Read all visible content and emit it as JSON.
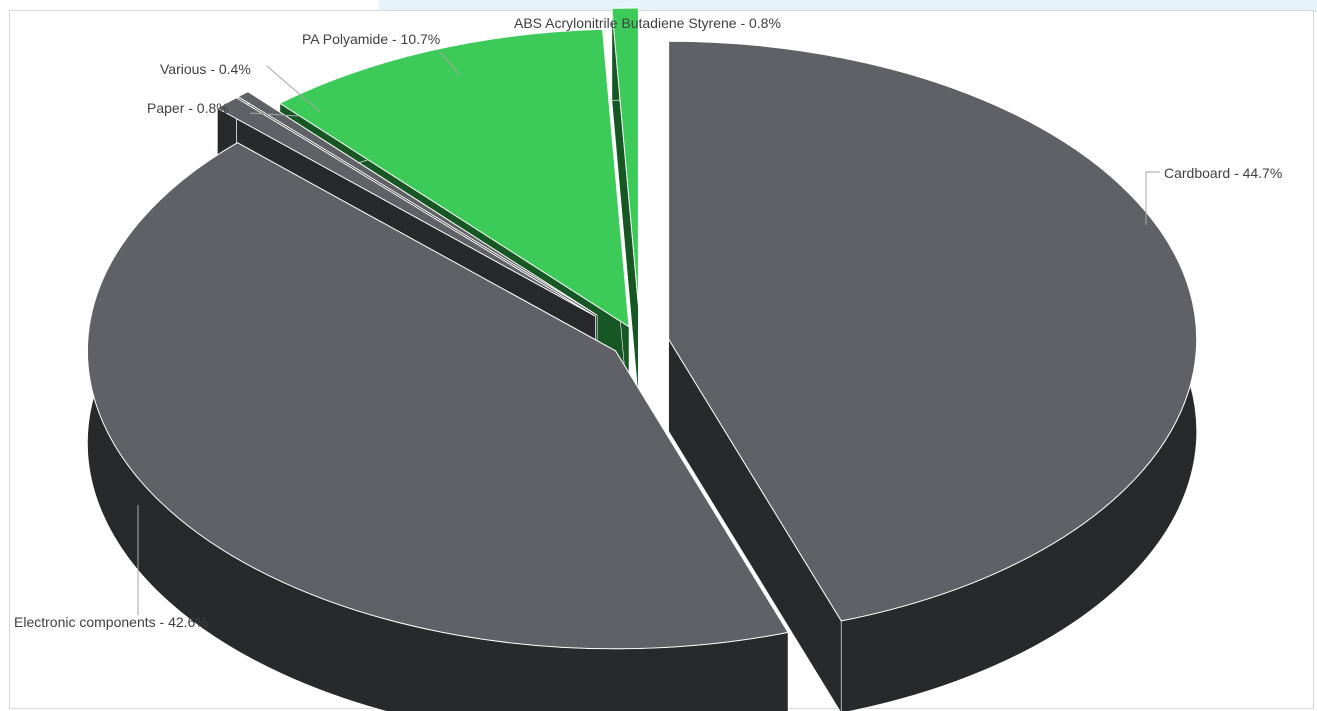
{
  "chart_data": {
    "type": "pie",
    "style": "3d-exploded",
    "title": "",
    "legend": "none",
    "slices": [
      {
        "label": "Cardboard",
        "value": 44.7,
        "display": "Cardboard - 44.7%",
        "color": "#606166",
        "side_color": "#28292b"
      },
      {
        "label": "Electronic components",
        "value": 42.6,
        "display": "Electronic components - 42.6%",
        "color": "#606166",
        "side_color": "#28292b"
      },
      {
        "label": "Paper",
        "value": 0.8,
        "display": "Paper - 0.8%",
        "color": "#606166",
        "side_color": "#28292b"
      },
      {
        "label": "Various",
        "value": 0.4,
        "display": "Various - 0.4%",
        "color": "#606166",
        "side_color": "#28292b"
      },
      {
        "label": "PA Polyamide",
        "value": 10.7,
        "display": "PA Polyamide - 10.7%",
        "color": "#3ccb58",
        "side_color": "#165724"
      },
      {
        "label": "ABS Acrylonitrile Butadiene Styrene",
        "value": 0.8,
        "display": "ABS Acrylonitrile Butadiene Styrene - 0.8%",
        "color": "#3ccb58",
        "side_color": "#165724"
      }
    ]
  }
}
